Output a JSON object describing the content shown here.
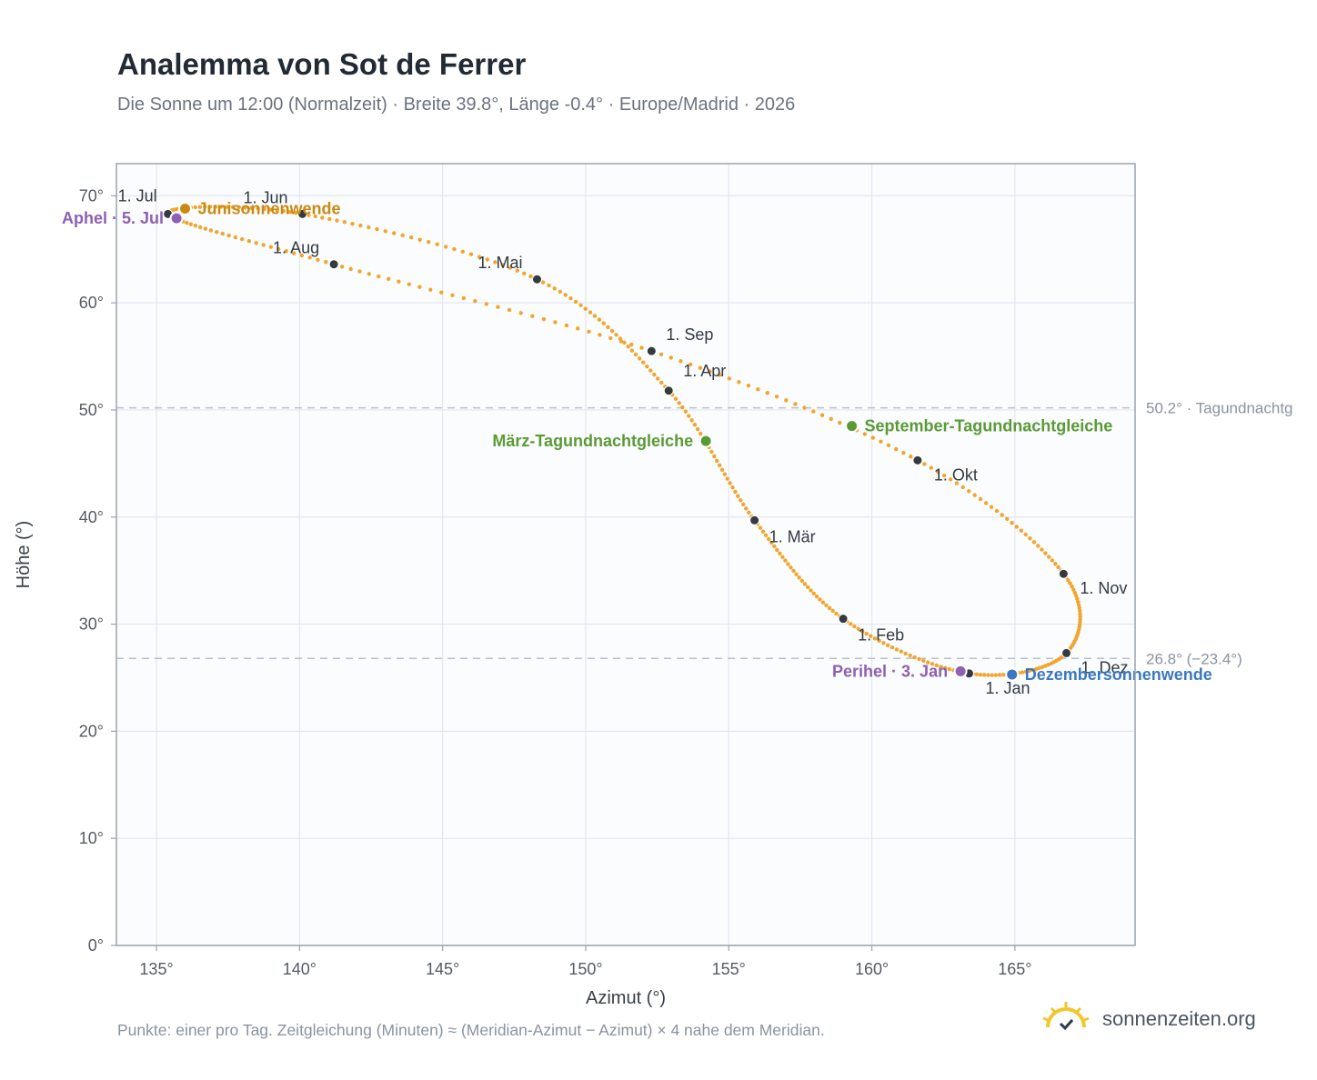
{
  "title": "Analemma von Sot de Ferrer",
  "subtitle": "Die Sonne um 12:00 (Normalzeit) · Breite 39.8°, Länge -0.4° · Europe/Madrid · 2026",
  "footnote": "Punkte: einer pro Tag. Zeitgleichung (Minuten) ≈ (Meridian-Azimut − Azimut) × 4 nahe dem Meridian.",
  "brand": {
    "text": "sonnenzeiten.org",
    "icon": "sun-check-icon",
    "icon_color": "#f2c62e"
  },
  "colors": {
    "curve": "#f2a52e",
    "month_point": "#343a40",
    "solstice_june": "#c98a12",
    "solstice_dec": "#3b78c0",
    "equinox": "#5a9a35",
    "aphelion": "#8e5fb3",
    "grid": "#e3e8ee",
    "plot_bg": "#fafcfe",
    "frame": "#9aa3b0"
  },
  "chart_data": {
    "type": "scatter",
    "xlabel": "Azimut (°)",
    "ylabel": "Höhe (°)",
    "xlim": [
      133.6,
      169.2
    ],
    "ylim": [
      0,
      73
    ],
    "xticks": [
      135,
      140,
      145,
      150,
      155,
      160,
      165
    ],
    "yticks": [
      0,
      10,
      20,
      30,
      40,
      50,
      60,
      70
    ],
    "xtick_labels": [
      "135°",
      "140°",
      "145°",
      "150°",
      "155°",
      "160°",
      "165°"
    ],
    "ytick_labels": [
      "0°",
      "10°",
      "20°",
      "30°",
      "40°",
      "50°",
      "60°",
      "70°"
    ],
    "grid": true,
    "reference_lines": [
      {
        "y": 50.2,
        "label": "50.2° · Tagundnachtg"
      },
      {
        "y": 26.8,
        "label": "26.8° (−23.4°)"
      }
    ],
    "months": [
      {
        "label": "1. Jan",
        "az": 163.4,
        "alt": 25.4
      },
      {
        "label": "1. Feb",
        "az": 159.0,
        "alt": 30.5
      },
      {
        "label": "1. Mär",
        "az": 155.9,
        "alt": 39.7
      },
      {
        "label": "1. Apr",
        "az": 152.9,
        "alt": 51.8
      },
      {
        "label": "1. Mai",
        "az": 148.3,
        "alt": 62.2
      },
      {
        "label": "1. Jun",
        "az": 140.1,
        "alt": 68.3
      },
      {
        "label": "1. Jul",
        "az": 135.4,
        "alt": 68.3
      },
      {
        "label": "1. Aug",
        "az": 141.2,
        "alt": 63.6
      },
      {
        "label": "1. Sep",
        "az": 152.3,
        "alt": 55.5
      },
      {
        "label": "1. Okt",
        "az": 161.6,
        "alt": 45.3
      },
      {
        "label": "1. Nov",
        "az": 166.7,
        "alt": 34.7
      },
      {
        "label": "1. Dez",
        "az": 166.8,
        "alt": 27.3
      }
    ],
    "events": [
      {
        "label": "Junisonnenwende",
        "az": 136.0,
        "alt": 68.8,
        "color": "#c98a12",
        "anchor": "start"
      },
      {
        "label": "Aphel · 5. Jul",
        "az": 135.7,
        "alt": 67.9,
        "color": "#8e5fb3",
        "anchor": "end"
      },
      {
        "label": "März-Tagundnachtgleiche",
        "az": 154.2,
        "alt": 47.1,
        "color": "#5a9a35",
        "anchor": "end"
      },
      {
        "label": "September-Tagundnachtgleiche",
        "az": 159.3,
        "alt": 48.5,
        "color": "#5a9a35",
        "anchor": "start"
      },
      {
        "label": "Perihel · 3. Jan",
        "az": 163.1,
        "alt": 25.6,
        "color": "#8e5fb3",
        "anchor": "end"
      },
      {
        "label": "Dezembersonnenwende",
        "az": 164.9,
        "alt": 25.3,
        "color": "#3b78c0",
        "anchor": "start"
      }
    ]
  }
}
